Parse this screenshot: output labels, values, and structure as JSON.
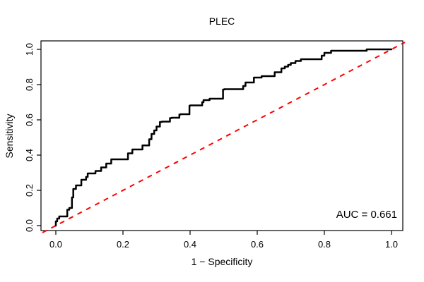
{
  "chart_data": {
    "type": "line",
    "subtype": "roc-curve",
    "title": "PLEC",
    "xlabel": "1 − Specificity",
    "ylabel": "Sensitivity",
    "xlim": [
      -0.04,
      1.04
    ],
    "ylim": [
      -0.04,
      1.04
    ],
    "grid": false,
    "x_tick_values": [
      0.0,
      0.2,
      0.4,
      0.6,
      0.8,
      1.0
    ],
    "x_tick_labels": [
      "0.0",
      "0.2",
      "0.4",
      "0.6",
      "0.8",
      "1.0"
    ],
    "y_tick_values": [
      0.0,
      0.2,
      0.4,
      0.6,
      0.8,
      1.0
    ],
    "y_tick_labels": [
      "0.0",
      "0.2",
      "0.4",
      "0.6",
      "0.8",
      "1.0"
    ],
    "annotation": {
      "label": "AUC = 0.661",
      "position": "bottom-right"
    },
    "series": [
      {
        "name": "ROC curve (PLEC)",
        "style": "step",
        "color": "#000000",
        "line_width": 2.5,
        "points": [
          [
            0.0,
            0.0
          ],
          [
            0.004,
            0.024
          ],
          [
            0.01,
            0.04
          ],
          [
            0.013,
            0.052
          ],
          [
            0.034,
            0.052
          ],
          [
            0.04,
            0.09
          ],
          [
            0.048,
            0.1
          ],
          [
            0.052,
            0.16
          ],
          [
            0.06,
            0.208
          ],
          [
            0.076,
            0.228
          ],
          [
            0.09,
            0.26
          ],
          [
            0.095,
            0.276
          ],
          [
            0.118,
            0.296
          ],
          [
            0.135,
            0.31
          ],
          [
            0.15,
            0.33
          ],
          [
            0.165,
            0.352
          ],
          [
            0.215,
            0.376
          ],
          [
            0.228,
            0.41
          ],
          [
            0.258,
            0.432
          ],
          [
            0.278,
            0.455
          ],
          [
            0.285,
            0.49
          ],
          [
            0.293,
            0.52
          ],
          [
            0.3,
            0.54
          ],
          [
            0.31,
            0.562
          ],
          [
            0.316,
            0.588
          ],
          [
            0.34,
            0.59
          ],
          [
            0.345,
            0.61
          ],
          [
            0.368,
            0.612
          ],
          [
            0.371,
            0.63
          ],
          [
            0.398,
            0.632
          ],
          [
            0.4,
            0.68
          ],
          [
            0.436,
            0.682
          ],
          [
            0.44,
            0.7
          ],
          [
            0.458,
            0.712
          ],
          [
            0.498,
            0.72
          ],
          [
            0.502,
            0.772
          ],
          [
            0.558,
            0.774
          ],
          [
            0.565,
            0.792
          ],
          [
            0.59,
            0.812
          ],
          [
            0.613,
            0.84
          ],
          [
            0.652,
            0.848
          ],
          [
            0.672,
            0.87
          ],
          [
            0.682,
            0.892
          ],
          [
            0.692,
            0.902
          ],
          [
            0.7,
            0.912
          ],
          [
            0.714,
            0.922
          ],
          [
            0.73,
            0.934
          ],
          [
            0.792,
            0.944
          ],
          [
            0.8,
            0.964
          ],
          [
            0.82,
            0.98
          ],
          [
            0.832,
            0.992
          ],
          [
            0.926,
            0.992
          ],
          [
            0.93,
            1.0
          ],
          [
            1.0,
            1.0
          ]
        ]
      },
      {
        "name": "Chance diagonal",
        "style": "dashed",
        "color": "#FF0000",
        "line_width": 2,
        "points": [
          [
            -0.04,
            -0.04
          ],
          [
            1.04,
            1.04
          ]
        ]
      }
    ]
  }
}
